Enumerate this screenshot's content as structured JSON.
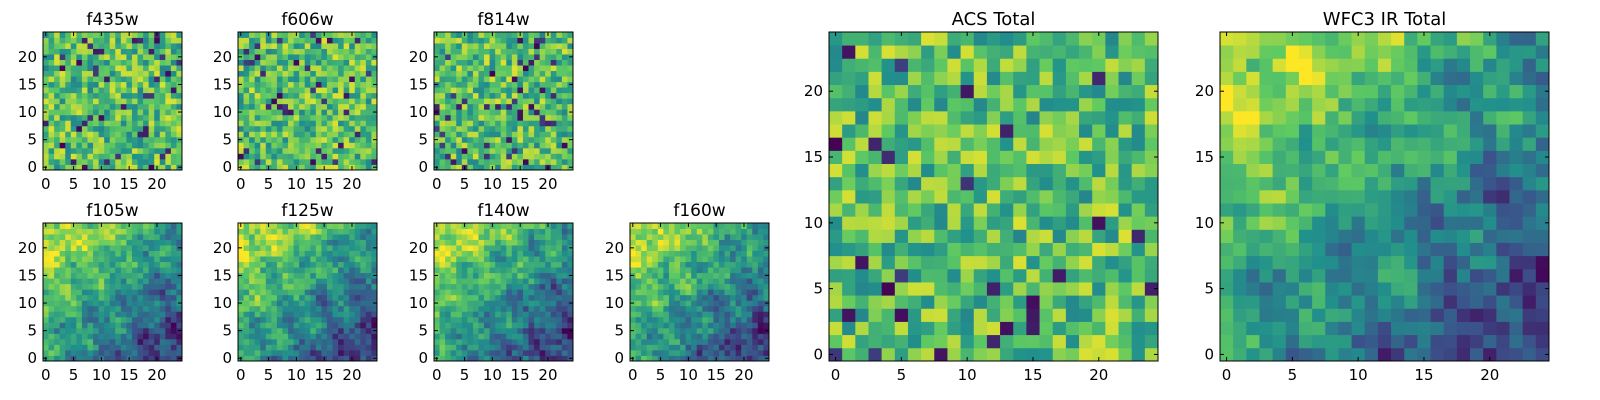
{
  "chart_data": [
    {
      "type": "heatmap",
      "title": "f435w",
      "grid_size": 25,
      "xlim": [
        0,
        24
      ],
      "ylim": [
        0,
        24
      ],
      "xticks": [
        0,
        5,
        10,
        15,
        20
      ],
      "yticks": [
        0,
        5,
        10,
        15,
        20
      ],
      "colormap": "viridis",
      "pattern": "noise"
    },
    {
      "type": "heatmap",
      "title": "f606w",
      "grid_size": 25,
      "xlim": [
        0,
        24
      ],
      "ylim": [
        0,
        24
      ],
      "xticks": [
        0,
        5,
        10,
        15,
        20
      ],
      "yticks": [
        0,
        5,
        10,
        15,
        20
      ],
      "colormap": "viridis",
      "pattern": "noise"
    },
    {
      "type": "heatmap",
      "title": "f814w",
      "grid_size": 25,
      "xlim": [
        0,
        24
      ],
      "ylim": [
        0,
        24
      ],
      "xticks": [
        0,
        5,
        10,
        15,
        20
      ],
      "yticks": [
        0,
        5,
        10,
        15,
        20
      ],
      "colormap": "viridis",
      "pattern": "noise"
    },
    {
      "type": "heatmap",
      "title": "f105w",
      "grid_size": 25,
      "xlim": [
        0,
        24
      ],
      "ylim": [
        0,
        24
      ],
      "xticks": [
        0,
        5,
        10,
        15,
        20
      ],
      "yticks": [
        0,
        5,
        10,
        15,
        20
      ],
      "colormap": "viridis",
      "pattern": "gradient"
    },
    {
      "type": "heatmap",
      "title": "f125w",
      "grid_size": 25,
      "xlim": [
        0,
        24
      ],
      "ylim": [
        0,
        24
      ],
      "xticks": [
        0,
        5,
        10,
        15,
        20
      ],
      "yticks": [
        0,
        5,
        10,
        15,
        20
      ],
      "colormap": "viridis",
      "pattern": "gradient"
    },
    {
      "type": "heatmap",
      "title": "f140w",
      "grid_size": 25,
      "xlim": [
        0,
        24
      ],
      "ylim": [
        0,
        24
      ],
      "xticks": [
        0,
        5,
        10,
        15,
        20
      ],
      "yticks": [
        0,
        5,
        10,
        15,
        20
      ],
      "colormap": "viridis",
      "pattern": "gradient"
    },
    {
      "type": "heatmap",
      "title": "f160w",
      "grid_size": 25,
      "xlim": [
        0,
        24
      ],
      "ylim": [
        0,
        24
      ],
      "xticks": [
        0,
        5,
        10,
        15,
        20
      ],
      "yticks": [
        0,
        5,
        10,
        15,
        20
      ],
      "colormap": "viridis",
      "pattern": "gradient"
    },
    {
      "type": "heatmap",
      "title": "ACS Total",
      "grid_size": 25,
      "xlim": [
        0,
        24
      ],
      "ylim": [
        0,
        24
      ],
      "xticks": [
        0,
        5,
        10,
        15,
        20
      ],
      "yticks": [
        0,
        5,
        10,
        15,
        20
      ],
      "colormap": "viridis",
      "pattern": "noise"
    },
    {
      "type": "heatmap",
      "title": "WFC3 IR Total",
      "grid_size": 25,
      "xlim": [
        0,
        24
      ],
      "ylim": [
        0,
        24
      ],
      "xticks": [
        0,
        5,
        10,
        15,
        20
      ],
      "yticks": [
        0,
        5,
        10,
        15,
        20
      ],
      "colormap": "viridis",
      "pattern": "gradient"
    }
  ],
  "colors": {
    "viridis": [
      "#440154",
      "#3b528b",
      "#21918c",
      "#5ec962",
      "#fde725"
    ],
    "axes": "#000000",
    "background": "#ffffff"
  }
}
